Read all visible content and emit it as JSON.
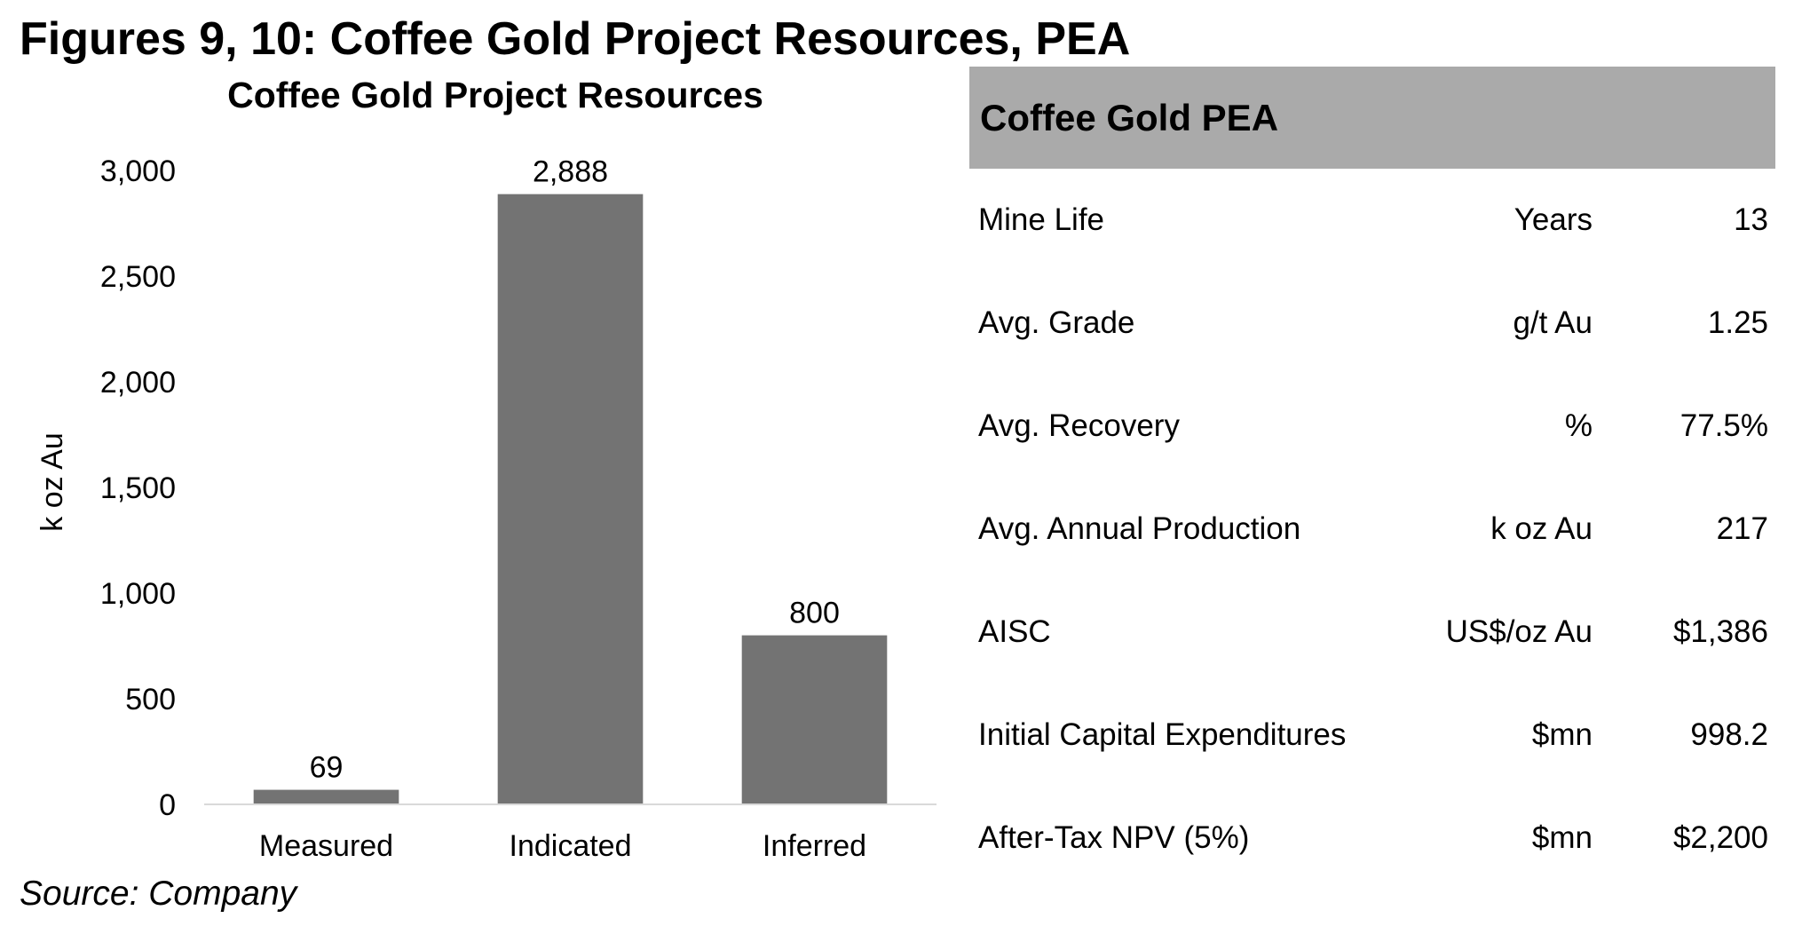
{
  "figure_title": "Figures 9, 10: Coffee Gold Project Resources, PEA",
  "source": "Source: Company",
  "colors": {
    "bar": "#737373",
    "table_header_bg": "#aaaaaa"
  },
  "chart_data": {
    "type": "bar",
    "title": "Coffee Gold Project Resources",
    "xlabel": "",
    "ylabel": "k oz Au",
    "categories": [
      "Measured",
      "Indicated",
      "Inferred"
    ],
    "values": [
      69,
      2888,
      800
    ],
    "data_labels": [
      "69",
      "2,888",
      "800"
    ],
    "ylim": [
      0,
      3000
    ],
    "yticks": [
      0,
      500,
      1000,
      1500,
      2000,
      2500,
      3000
    ],
    "ytick_labels": [
      "0",
      "500",
      "1,000",
      "1,500",
      "2,000",
      "2,500",
      "3,000"
    ],
    "grid": false,
    "legend": "none"
  },
  "pea_table": {
    "title": "Coffee Gold PEA",
    "rows": [
      {
        "label": "Mine Life",
        "unit": "Years",
        "value": "13"
      },
      {
        "label": "Avg. Grade",
        "unit": "g/t Au",
        "value": "1.25"
      },
      {
        "label": "Avg. Recovery",
        "unit": "%",
        "value": "77.5%"
      },
      {
        "label": "Avg. Annual Production",
        "unit": "k oz Au",
        "value": "217"
      },
      {
        "label": "AISC",
        "unit": "US$/oz Au",
        "value": "$1,386"
      },
      {
        "label": "Initial Capital Expenditures",
        "unit": "$mn",
        "value": "998.2"
      },
      {
        "label": "After-Tax NPV (5%)",
        "unit": "$mn",
        "value": "$2,200"
      }
    ]
  }
}
